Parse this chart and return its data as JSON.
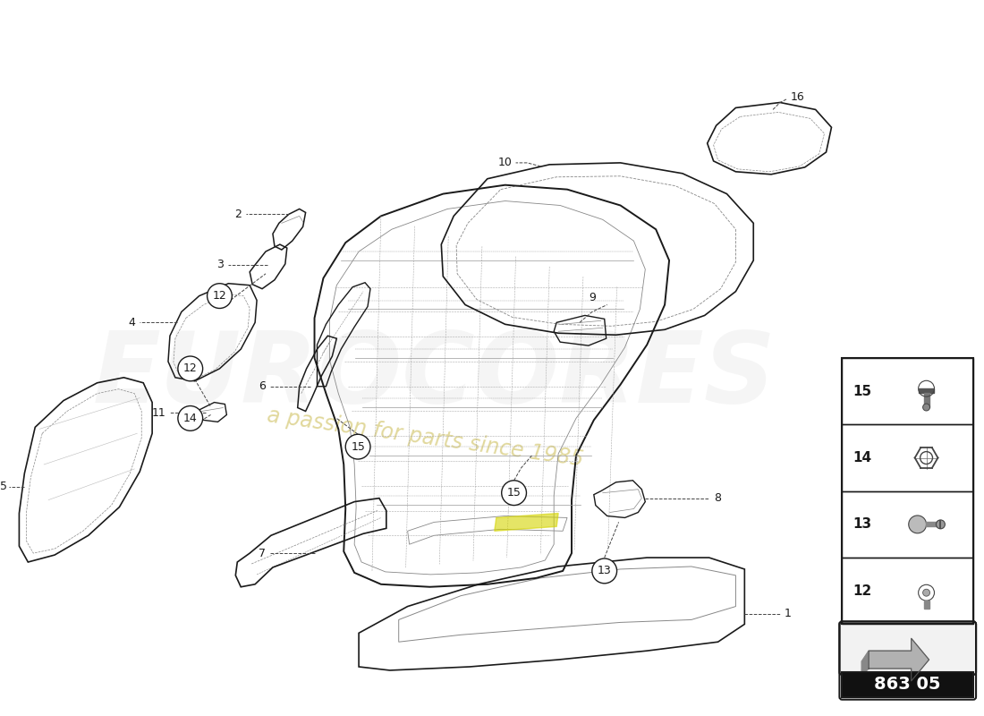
{
  "background_color": "#ffffff",
  "line_color": "#1a1a1a",
  "dashed_color": "#444444",
  "light_line": "#888888",
  "watermark_color": "#cccccc",
  "watermark_yellow": "#c8b84a",
  "code_box": "863 05",
  "fig_width": 11.0,
  "fig_height": 8.0,
  "dpi": 100
}
